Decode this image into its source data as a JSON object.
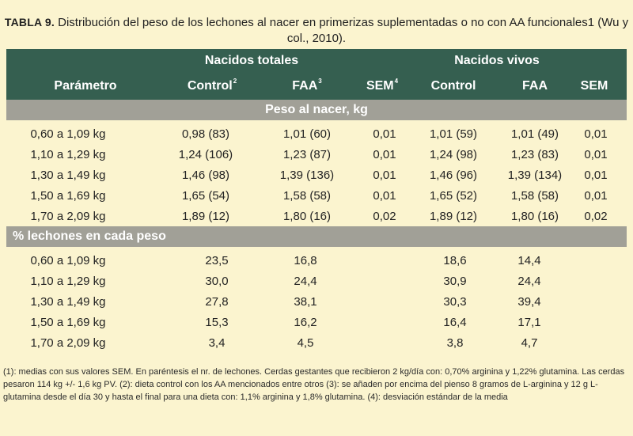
{
  "caption": {
    "label": "TABLA 9.",
    "text": "Distribución del peso de los lechones al nacer en primerizas suplementadas o no con AA funcionales1 (Wu y col., 2010)."
  },
  "table": {
    "group_headers": {
      "totales": "Nacidos totales",
      "vivos": "Nacidos vivos"
    },
    "column_headers": {
      "parametro": "Parámetro",
      "control_totales": "Control",
      "control_totales_sup": "2",
      "faa_totales": "FAA",
      "faa_totales_sup": "3",
      "sem_totales": "SEM",
      "sem_totales_sup": "4",
      "control_vivos": "Control",
      "faa_vivos": "FAA",
      "sem_vivos": "SEM"
    },
    "section1_title": "Peso al nacer, kg",
    "section1_rows": [
      {
        "param": "0,60 a 1,09 kg",
        "ct": "0,98 (83)",
        "faa": "1,01 (60)",
        "sem": "0,01",
        "cv": "1,01 (59)",
        "faav": "1,01 (49)",
        "semv": "0,01"
      },
      {
        "param": "1,10 a 1,29 kg",
        "ct": "1,24 (106)",
        "faa": "1,23 (87)",
        "sem": "0,01",
        "cv": "1,24 (98)",
        "faav": "1,23 (83)",
        "semv": "0,01"
      },
      {
        "param": "1,30 a 1,49 kg",
        "ct": "1,46 (98)",
        "faa": "1,39 (136)",
        "sem": "0,01",
        "cv": "1,46 (96)",
        "faav": "1,39 (134)",
        "semv": "0,01"
      },
      {
        "param": "1,50 a 1,69 kg",
        "ct": "1,65 (54)",
        "faa": "1,58 (58)",
        "sem": "0,01",
        "cv": "1,65 (52)",
        "faav": "1,58 (58)",
        "semv": "0,01"
      },
      {
        "param": "1,70 a 2,09 kg",
        "ct": "1,89 (12)",
        "faa": "1,80 (16)",
        "sem": "0,02",
        "cv": "1,89 (12)",
        "faav": "1,80 (16)",
        "semv": "0,02"
      }
    ],
    "section2_title": "% lechones en cada peso",
    "section2_rows": [
      {
        "param": "0,60 a 1,09 kg",
        "ct": "23,5",
        "faa": "16,8",
        "cv": "18,6",
        "faav": "14,4"
      },
      {
        "param": "1,10 a 1,29 kg",
        "ct": "30,0",
        "faa": "24,4",
        "cv": "30,9",
        "faav": "24,4"
      },
      {
        "param": "1,30 a 1,49 kg",
        "ct": "27,8",
        "faa": "38,1",
        "cv": "30,3",
        "faav": "39,4"
      },
      {
        "param": "1,50 a 1,69 kg",
        "ct": "15,3",
        "faa": "16,2",
        "cv": "16,4",
        "faav": "17,1"
      },
      {
        "param": "1,70 a 2,09 kg",
        "ct": "3,4",
        "faa": "4,5",
        "cv": "3,8",
        "faav": "4,7"
      }
    ]
  },
  "footnote": "(1): medias con sus valores SEM. En paréntesis el nr. de lechones. Cerdas gestantes que recibieron 2 kg/día con: 0,70% arginina y 1,22% glutamina. Las cerdas pesaron 114 kg +/- 1,6 kg PV. (2): dieta control con los AA mencionados entre otros (3): se añaden por encima del pienso 8 gramos de L-arginina y 12 g L-glutamina desde el día 30 y hasta el final para una dieta con: 1,1% arginina y 1,8% glutamina. (4): desviación estándar de la media",
  "colors": {
    "background": "#fbf4cf",
    "header_green": "#355f50",
    "section_band_gray": "#a1a097"
  }
}
